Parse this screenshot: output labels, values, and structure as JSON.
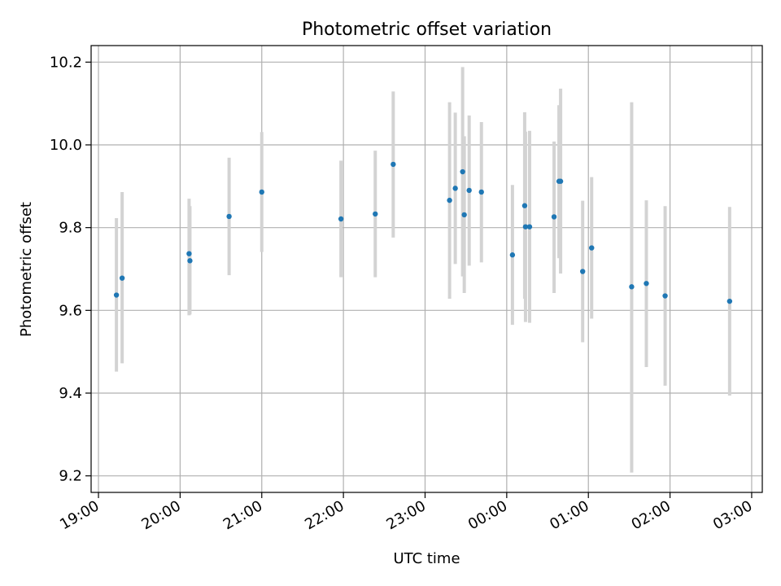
{
  "chart_data": {
    "type": "scatter",
    "title": "Photometric offset variation",
    "xlabel": "UTC time",
    "ylabel": "Photometric offset",
    "colors": {
      "point": "#1f77b4",
      "errorbar": "#d3d3d3",
      "grid": "#b0b0b0"
    },
    "xlim_hours": [
      18.91,
      27.13
    ],
    "ylim": [
      9.16,
      10.24
    ],
    "x_ticks": [
      {
        "hour": 19,
        "label": "19:00"
      },
      {
        "hour": 20,
        "label": "20:00"
      },
      {
        "hour": 21,
        "label": "21:00"
      },
      {
        "hour": 22,
        "label": "22:00"
      },
      {
        "hour": 23,
        "label": "23:00"
      },
      {
        "hour": 24,
        "label": "00:00"
      },
      {
        "hour": 25,
        "label": "01:00"
      },
      {
        "hour": 26,
        "label": "02:00"
      },
      {
        "hour": 27,
        "label": "03:00"
      }
    ],
    "y_ticks": [
      {
        "value": 9.2,
        "label": "9.2"
      },
      {
        "value": 9.4,
        "label": "9.4"
      },
      {
        "value": 9.6,
        "label": "9.6"
      },
      {
        "value": 9.8,
        "label": "9.8"
      },
      {
        "value": 10.0,
        "label": "10.0"
      },
      {
        "value": 10.2,
        "label": "10.2"
      }
    ],
    "points": [
      {
        "t": 19.22,
        "y": 9.637,
        "lo": 9.452,
        "hi": 9.823
      },
      {
        "t": 19.29,
        "y": 9.678,
        "lo": 9.472,
        "hi": 9.886
      },
      {
        "t": 20.11,
        "y": 9.737,
        "lo": 9.588,
        "hi": 9.87
      },
      {
        "t": 20.12,
        "y": 9.72,
        "lo": 9.59,
        "hi": 9.852
      },
      {
        "t": 20.6,
        "y": 9.827,
        "lo": 9.685,
        "hi": 9.969
      },
      {
        "t": 21.0,
        "y": 9.886,
        "lo": 9.741,
        "hi": 10.031
      },
      {
        "t": 21.97,
        "y": 9.821,
        "lo": 9.68,
        "hi": 9.962
      },
      {
        "t": 22.39,
        "y": 9.833,
        "lo": 9.68,
        "hi": 9.986
      },
      {
        "t": 22.61,
        "y": 9.953,
        "lo": 9.776,
        "hi": 10.129
      },
      {
        "t": 23.3,
        "y": 9.866,
        "lo": 9.628,
        "hi": 10.103
      },
      {
        "t": 23.37,
        "y": 9.895,
        "lo": 9.712,
        "hi": 10.078
      },
      {
        "t": 23.46,
        "y": 9.935,
        "lo": 9.682,
        "hi": 10.188
      },
      {
        "t": 23.48,
        "y": 9.831,
        "lo": 9.642,
        "hi": 10.021
      },
      {
        "t": 23.54,
        "y": 9.89,
        "lo": 9.708,
        "hi": 10.071
      },
      {
        "t": 23.69,
        "y": 9.886,
        "lo": 9.716,
        "hi": 10.055
      },
      {
        "t": 24.07,
        "y": 9.734,
        "lo": 9.565,
        "hi": 9.903
      },
      {
        "t": 24.22,
        "y": 9.853,
        "lo": 9.628,
        "hi": 10.079
      },
      {
        "t": 24.23,
        "y": 9.802,
        "lo": 9.572,
        "hi": 10.032
      },
      {
        "t": 24.28,
        "y": 9.802,
        "lo": 9.57,
        "hi": 10.034
      },
      {
        "t": 24.58,
        "y": 9.826,
        "lo": 9.642,
        "hi": 10.008
      },
      {
        "t": 24.64,
        "y": 9.912,
        "lo": 9.726,
        "hi": 10.096
      },
      {
        "t": 24.66,
        "y": 9.912,
        "lo": 9.689,
        "hi": 10.136
      },
      {
        "t": 24.93,
        "y": 9.694,
        "lo": 9.523,
        "hi": 9.865
      },
      {
        "t": 25.04,
        "y": 9.751,
        "lo": 9.58,
        "hi": 9.922
      },
      {
        "t": 25.53,
        "y": 9.657,
        "lo": 9.208,
        "hi": 10.103
      },
      {
        "t": 25.71,
        "y": 9.665,
        "lo": 9.463,
        "hi": 9.866
      },
      {
        "t": 25.94,
        "y": 9.635,
        "lo": 9.418,
        "hi": 9.852
      },
      {
        "t": 26.73,
        "y": 9.622,
        "lo": 9.394,
        "hi": 9.85
      }
    ]
  }
}
